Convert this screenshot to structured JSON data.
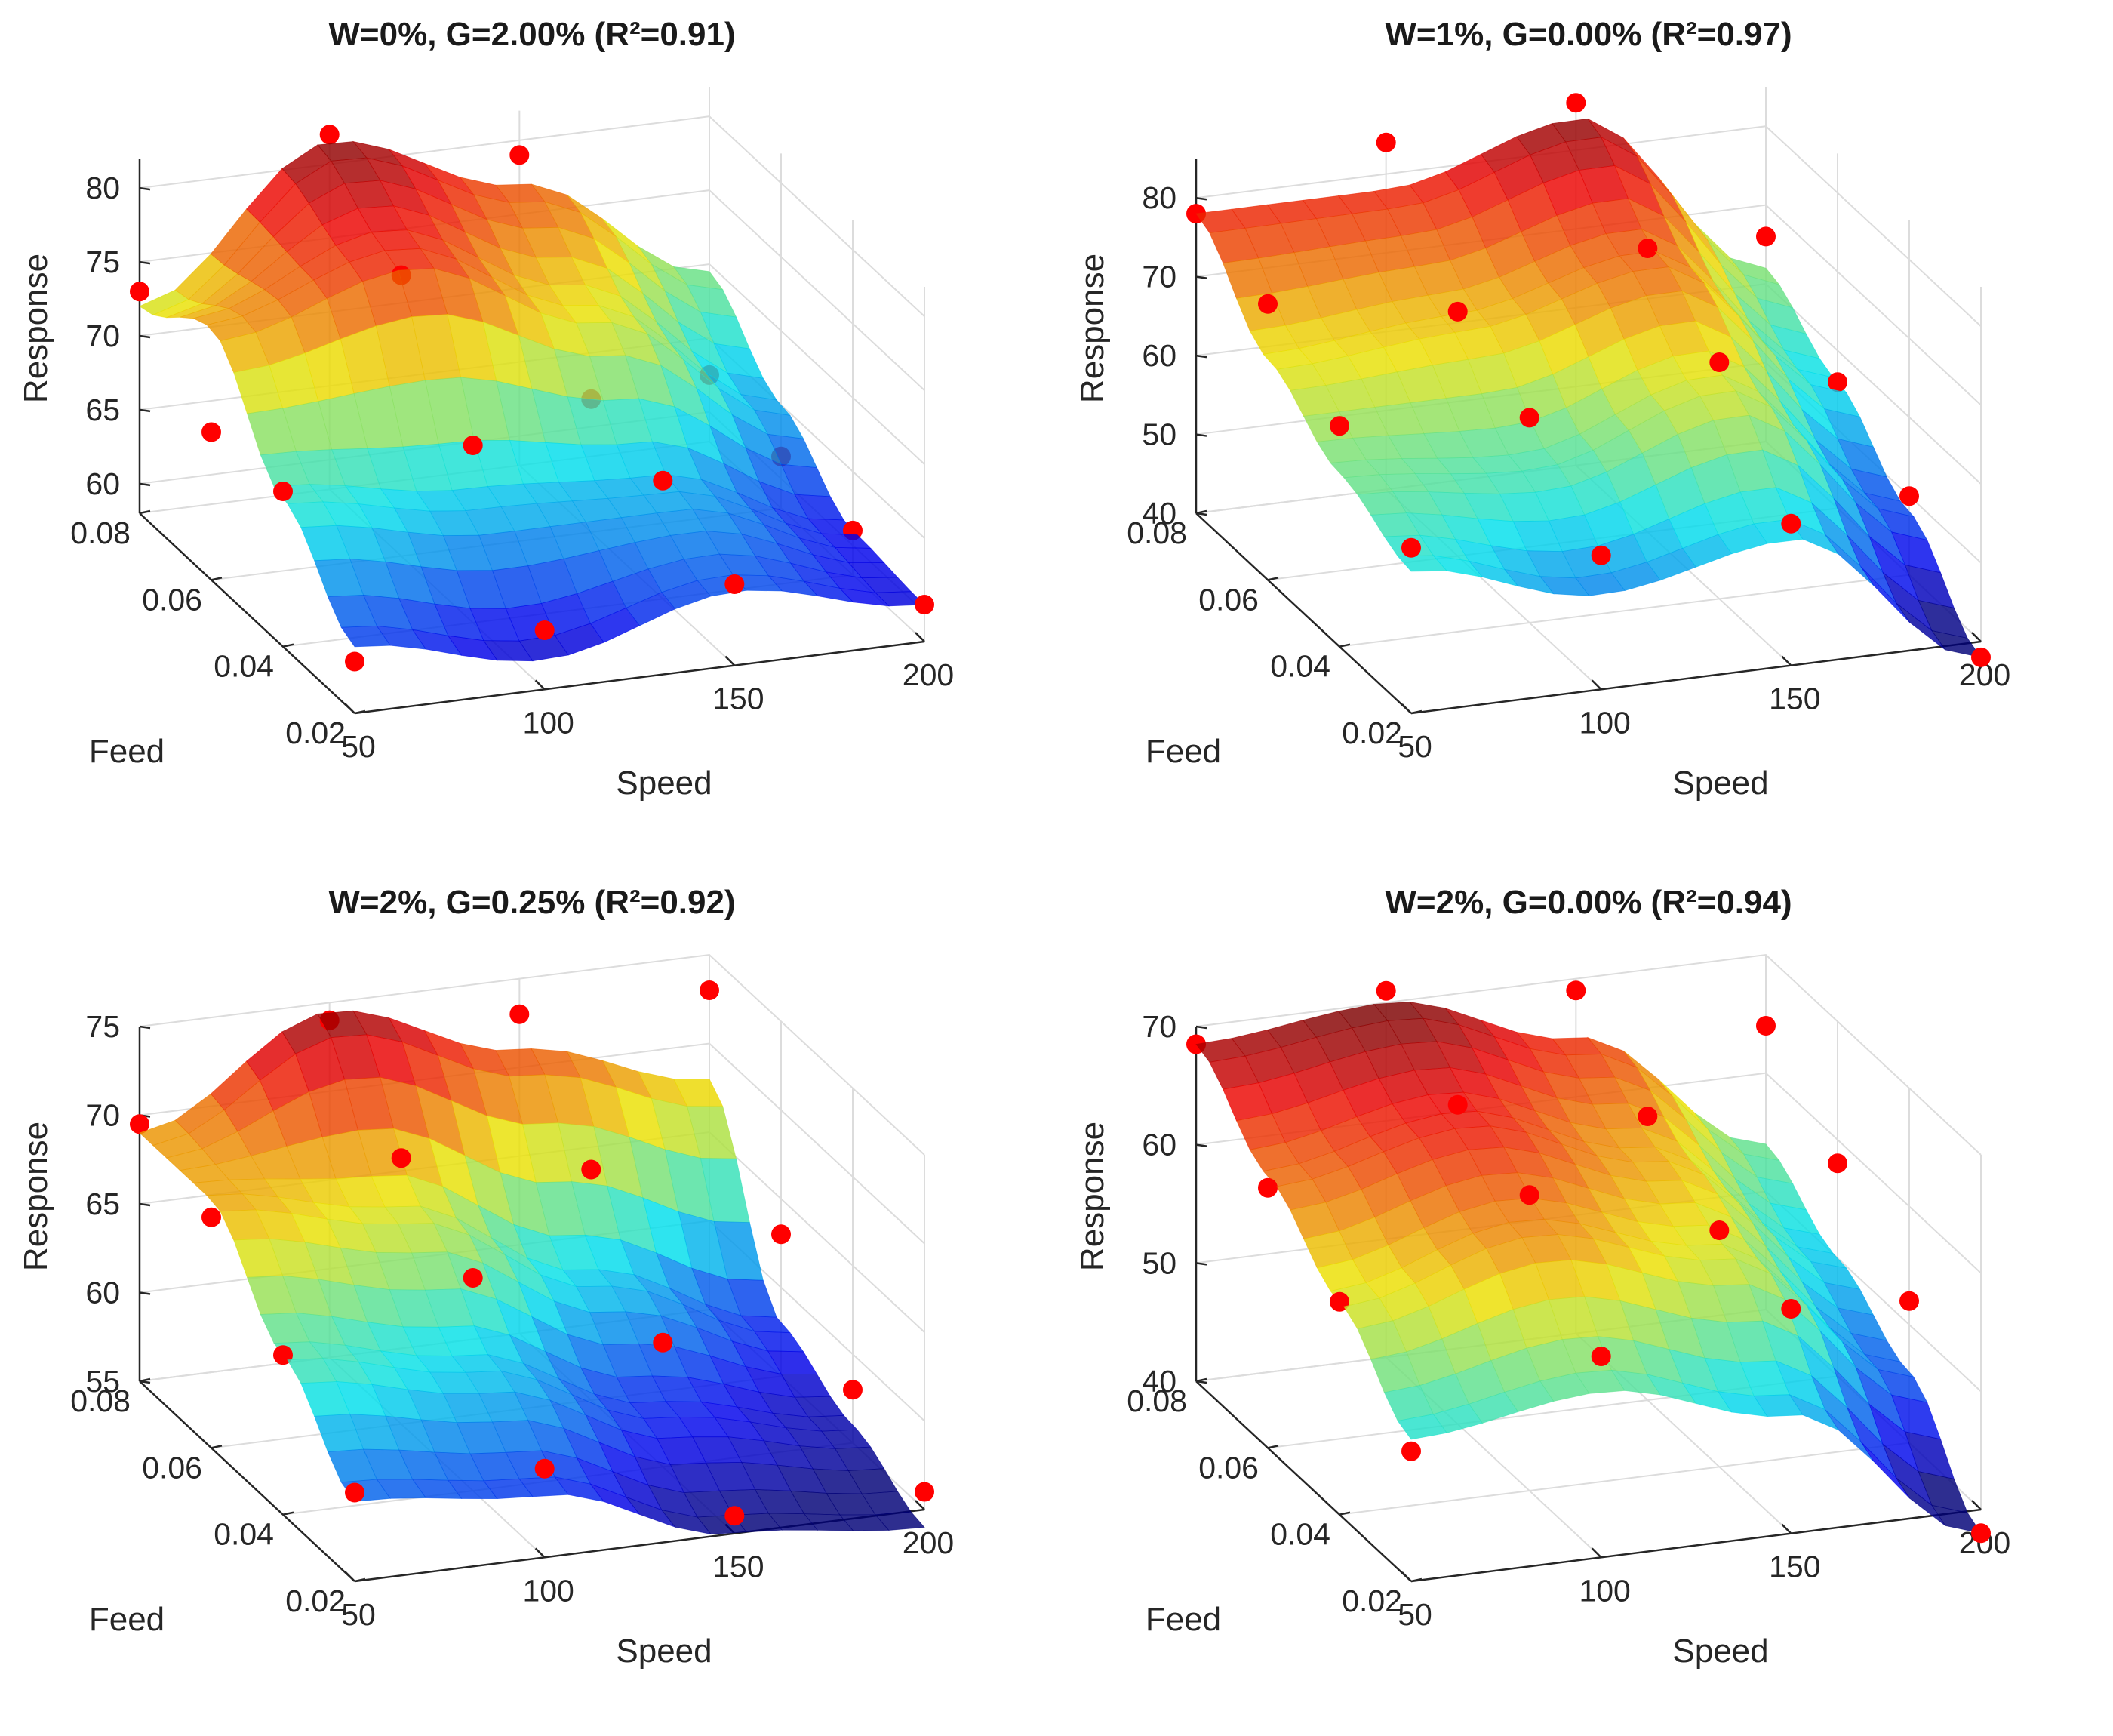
{
  "chart_data": [
    {
      "type": "surface3d",
      "title": "W=0%, G=2.00% (R²=0.91)",
      "xlabel": "Speed",
      "ylabel": "Feed",
      "zlabel": "Response",
      "xlim": [
        50,
        200
      ],
      "ylim": [
        0.02,
        0.08
      ],
      "zlim": [
        58,
        82
      ],
      "xticks": [
        "50",
        "100",
        "150",
        "200"
      ],
      "yticks": [
        "0.02",
        "0.04",
        "0.06",
        "0.08"
      ],
      "zticks": [
        "60",
        "65",
        "70",
        "75",
        "80"
      ],
      "x": [
        50,
        100,
        150,
        200
      ],
      "y": [
        0.02,
        0.04,
        0.06,
        0.08
      ],
      "z": [
        [
          62.5,
          60.0,
          63.0,
          60.5
        ],
        [
          68.0,
          66.0,
          65.5,
          61.0
        ],
        [
          75.0,
          78.5,
          73.0,
          65.0
        ],
        [
          72.0,
          81.5,
          77.0,
          69.5
        ]
      ],
      "points": [
        {
          "x": 50,
          "y": 0.08,
          "z": 73.0
        },
        {
          "x": 50,
          "y": 0.06,
          "z": 68.0
        },
        {
          "x": 50,
          "y": 0.04,
          "z": 68.5
        },
        {
          "x": 50,
          "y": 0.02,
          "z": 61.5
        },
        {
          "x": 100,
          "y": 0.08,
          "z": 82.0
        },
        {
          "x": 100,
          "y": 0.06,
          "z": 77.0
        },
        {
          "x": 100,
          "y": 0.04,
          "z": 70.0
        },
        {
          "x": 100,
          "y": 0.02,
          "z": 62.0
        },
        {
          "x": 150,
          "y": 0.08,
          "z": 79.0
        },
        {
          "x": 150,
          "y": 0.06,
          "z": 67.0
        },
        {
          "x": 150,
          "y": 0.04,
          "z": 66.0
        },
        {
          "x": 150,
          "y": 0.02,
          "z": 63.5
        },
        {
          "x": 200,
          "y": 0.08,
          "z": 62.5
        },
        {
          "x": 200,
          "y": 0.06,
          "z": 61.5
        },
        {
          "x": 200,
          "y": 0.04,
          "z": 61.0
        },
        {
          "x": 200,
          "y": 0.02,
          "z": 60.5
        }
      ]
    },
    {
      "type": "surface3d",
      "title": "W=1%, G=0.00% (R²=0.97)",
      "xlabel": "Speed",
      "ylabel": "Feed",
      "zlabel": "Response",
      "xlim": [
        50,
        200
      ],
      "ylim": [
        0.02,
        0.08
      ],
      "zlim": [
        40,
        85
      ],
      "xticks": [
        "50",
        "100",
        "150",
        "200"
      ],
      "yticks": [
        "0.02",
        "0.04",
        "0.06",
        "0.08"
      ],
      "zticks": [
        "40",
        "50",
        "60",
        "70",
        "80"
      ],
      "x": [
        50,
        100,
        150,
        200
      ],
      "y": [
        0.02,
        0.04,
        0.06,
        0.08
      ],
      "z": [
        [
          58.0,
          52.0,
          56.0,
          38.0
        ],
        [
          62.0,
          60.0,
          67.0,
          48.0
        ],
        [
          68.0,
          70.0,
          75.0,
          56.0
        ],
        [
          78.0,
          78.0,
          84.0,
          62.0
        ]
      ],
      "points": [
        {
          "x": 50,
          "y": 0.08,
          "z": 78.0
        },
        {
          "x": 50,
          "y": 0.06,
          "z": 75.0
        },
        {
          "x": 50,
          "y": 0.04,
          "z": 68.0
        },
        {
          "x": 50,
          "y": 0.02,
          "z": 61.0
        },
        {
          "x": 100,
          "y": 0.08,
          "z": 84.0
        },
        {
          "x": 100,
          "y": 0.06,
          "z": 71.0
        },
        {
          "x": 100,
          "y": 0.04,
          "z": 66.0
        },
        {
          "x": 100,
          "y": 0.02,
          "z": 57.0
        },
        {
          "x": 150,
          "y": 0.08,
          "z": 86.0
        },
        {
          "x": 150,
          "y": 0.06,
          "z": 76.0
        },
        {
          "x": 150,
          "y": 0.04,
          "z": 70.0
        },
        {
          "x": 150,
          "y": 0.02,
          "z": 58.0
        },
        {
          "x": 200,
          "y": 0.08,
          "z": 66.0
        },
        {
          "x": 200,
          "y": 0.06,
          "z": 56.0
        },
        {
          "x": 200,
          "y": 0.04,
          "z": 50.0
        },
        {
          "x": 200,
          "y": 0.02,
          "z": 38.0
        }
      ]
    },
    {
      "type": "surface3d",
      "title": "W=2%, G=0.25% (R²=0.92)",
      "xlabel": "Speed",
      "ylabel": "Feed",
      "zlabel": "Response",
      "xlim": [
        50,
        200
      ],
      "ylim": [
        0.02,
        0.08
      ],
      "zlim": [
        55,
        75
      ],
      "xticks": [
        "50",
        "100",
        "150",
        "200"
      ],
      "yticks": [
        "0.02",
        "0.04",
        "0.06",
        "0.08"
      ],
      "zticks": [
        "55",
        "60",
        "65",
        "70",
        "75"
      ],
      "x": [
        50,
        100,
        150,
        200
      ],
      "y": [
        0.02,
        0.04,
        0.06,
        0.08
      ],
      "z": [
        [
          59.5,
          58.5,
          55.0,
          54.0
        ],
        [
          64.0,
          62.0,
          58.0,
          56.0
        ],
        [
          69.0,
          67.0,
          62.0,
          58.0
        ],
        [
          69.0,
          74.5,
          71.0,
          68.0
        ]
      ],
      "points": [
        {
          "x": 50,
          "y": 0.08,
          "z": 69.5
        },
        {
          "x": 50,
          "y": 0.06,
          "z": 68.0
        },
        {
          "x": 50,
          "y": 0.04,
          "z": 64.0
        },
        {
          "x": 50,
          "y": 0.02,
          "z": 60.0
        },
        {
          "x": 100,
          "y": 0.08,
          "z": 74.0
        },
        {
          "x": 100,
          "y": 0.06,
          "z": 70.0
        },
        {
          "x": 100,
          "y": 0.04,
          "z": 67.0
        },
        {
          "x": 100,
          "y": 0.02,
          "z": 60.0
        },
        {
          "x": 150,
          "y": 0.08,
          "z": 73.0
        },
        {
          "x": 150,
          "y": 0.06,
          "z": 68.0
        },
        {
          "x": 150,
          "y": 0.04,
          "z": 62.0
        },
        {
          "x": 150,
          "y": 0.02,
          "z": 56.0
        },
        {
          "x": 200,
          "y": 0.08,
          "z": 73.0
        },
        {
          "x": 200,
          "y": 0.06,
          "z": 63.0
        },
        {
          "x": 200,
          "y": 0.04,
          "z": 58.0
        },
        {
          "x": 200,
          "y": 0.02,
          "z": 56.0
        }
      ]
    },
    {
      "type": "surface3d",
      "title": "W=2%, G=0.00% (R²=0.94)",
      "xlabel": "Speed",
      "ylabel": "Feed",
      "zlabel": "Response",
      "xlim": [
        50,
        200
      ],
      "ylim": [
        0.02,
        0.08
      ],
      "zlim": [
        40,
        70
      ],
      "xticks": [
        "50",
        "100",
        "150",
        "200"
      ],
      "yticks": [
        "0.02",
        "0.04",
        "0.06",
        "0.08"
      ],
      "zticks": [
        "40",
        "50",
        "60",
        "70"
      ],
      "x": [
        50,
        100,
        150,
        200
      ],
      "y": [
        0.02,
        0.04,
        0.06,
        0.08
      ],
      "z": [
        [
          52.0,
          54.0,
          50.0,
          38.0
        ],
        [
          58.0,
          62.0,
          58.0,
          46.0
        ],
        [
          63.0,
          66.0,
          61.0,
          50.0
        ],
        [
          68.5,
          70.0,
          65.0,
          54.0
        ]
      ],
      "points": [
        {
          "x": 50,
          "y": 0.08,
          "z": 68.5
        },
        {
          "x": 50,
          "y": 0.06,
          "z": 62.0
        },
        {
          "x": 50,
          "y": 0.04,
          "z": 58.0
        },
        {
          "x": 50,
          "y": 0.02,
          "z": 51.0
        },
        {
          "x": 100,
          "y": 0.08,
          "z": 71.0
        },
        {
          "x": 100,
          "y": 0.06,
          "z": 67.0
        },
        {
          "x": 100,
          "y": 0.04,
          "z": 65.0
        },
        {
          "x": 100,
          "y": 0.02,
          "z": 57.0
        },
        {
          "x": 150,
          "y": 0.08,
          "z": 69.0
        },
        {
          "x": 150,
          "y": 0.06,
          "z": 64.0
        },
        {
          "x": 150,
          "y": 0.04,
          "z": 60.0
        },
        {
          "x": 150,
          "y": 0.02,
          "z": 59.0
        },
        {
          "x": 200,
          "y": 0.08,
          "z": 64.0
        },
        {
          "x": 200,
          "y": 0.06,
          "z": 58.0
        },
        {
          "x": 200,
          "y": 0.04,
          "z": 52.0
        },
        {
          "x": 200,
          "y": 0.02,
          "z": 38.0
        }
      ]
    }
  ]
}
